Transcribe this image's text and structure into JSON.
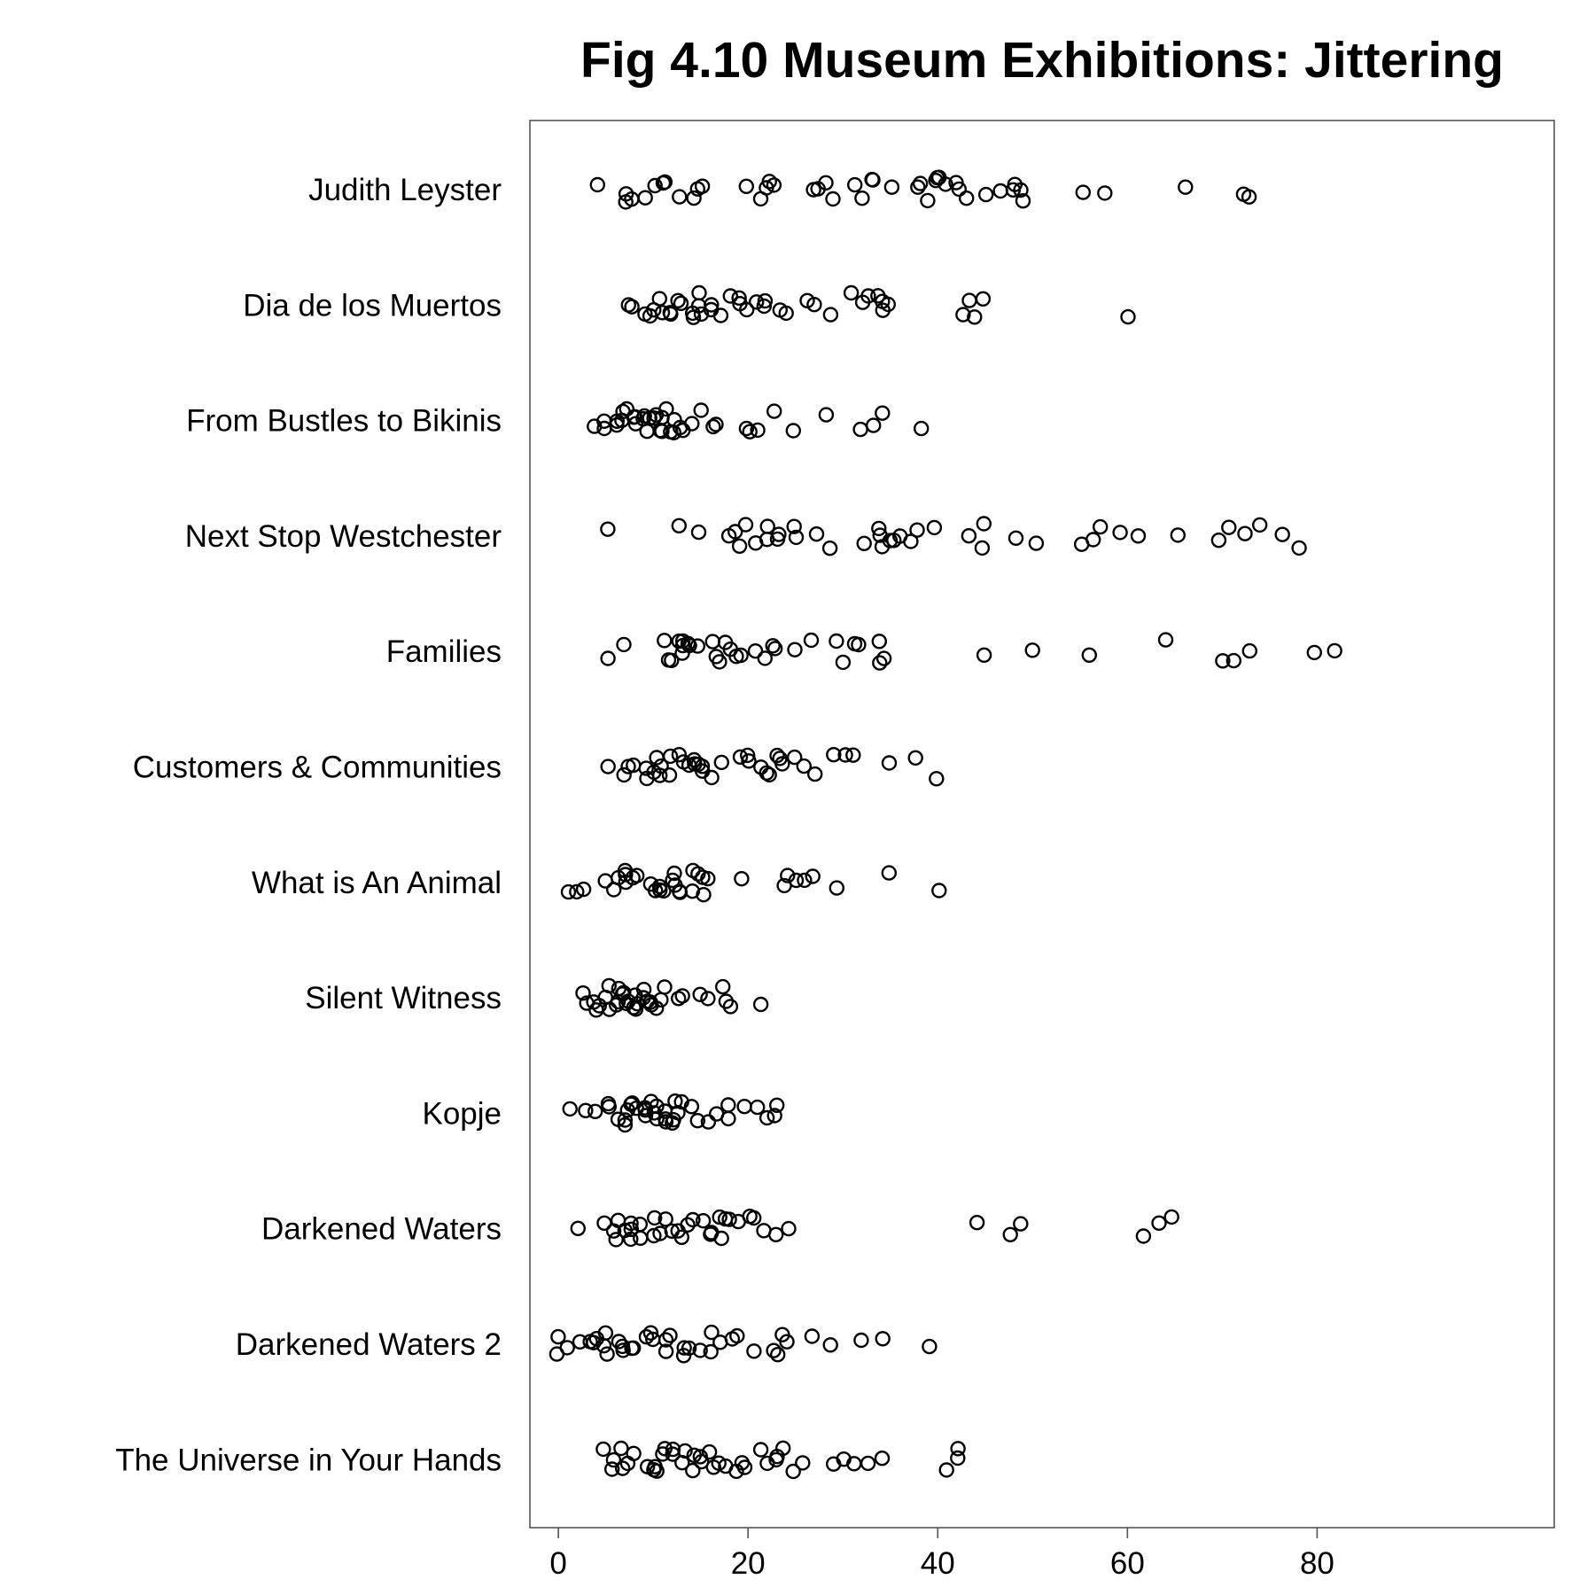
{
  "chart_data": {
    "type": "scatter",
    "title": "Fig 4.10 Museum Exhibitions: Jittering",
    "xlabel": "",
    "ylabel": "",
    "xlim": [
      -3,
      105
    ],
    "xticks": [
      0,
      20,
      40,
      60,
      80
    ],
    "grid": false,
    "legend": "none",
    "point_color": "#000000",
    "categories": [
      "Judith Leyster",
      "Dia de los Muertos",
      "From Bustles to Bikinis",
      "Next Stop Westchester",
      "Families",
      "Customers & Communities",
      "What is An Animal",
      "Silent Witness",
      "Kopje",
      "Darkened Waters",
      "Darkened Waters 2",
      "The Universe in Your Hands"
    ],
    "series": [
      {
        "values": [
          4,
          7,
          7,
          8,
          9,
          10,
          11,
          11,
          13,
          14,
          15,
          15,
          20,
          21,
          22,
          22,
          23,
          27,
          27,
          28,
          29,
          31,
          32,
          33,
          33,
          35,
          38,
          38,
          39,
          40,
          40,
          40,
          41,
          42,
          42,
          43,
          45,
          47,
          48,
          48,
          49,
          49,
          55,
          58,
          66,
          72,
          73
        ]
      },
      {
        "values": [
          7,
          8,
          9,
          10,
          10,
          11,
          11,
          12,
          12,
          13,
          13,
          14,
          14,
          15,
          15,
          15,
          16,
          16,
          17,
          18,
          19,
          19,
          20,
          21,
          22,
          22,
          23,
          24,
          26,
          27,
          29,
          31,
          32,
          33,
          34,
          34,
          34,
          35,
          43,
          43,
          44,
          45,
          60
        ]
      },
      {
        "values": [
          4,
          5,
          5,
          6,
          6,
          7,
          7,
          7,
          8,
          8,
          8,
          9,
          9,
          9,
          10,
          10,
          10,
          11,
          11,
          11,
          11,
          12,
          12,
          12,
          13,
          13,
          14,
          15,
          16,
          17,
          20,
          20,
          21,
          23,
          25,
          28,
          32,
          33,
          34,
          38
        ]
      },
      {
        "values": [
          5,
          13,
          15,
          18,
          19,
          19,
          20,
          21,
          22,
          22,
          23,
          23,
          25,
          25,
          27,
          29,
          32,
          34,
          34,
          34,
          35,
          35,
          36,
          37,
          38,
          40,
          43,
          45,
          45,
          48,
          50,
          55,
          56,
          57,
          59,
          61,
          65,
          70,
          71,
          72,
          74,
          76,
          78
        ]
      },
      {
        "values": [
          5,
          7,
          11,
          12,
          12,
          13,
          13,
          13,
          13,
          14,
          14,
          15,
          16,
          17,
          17,
          18,
          18,
          19,
          19,
          21,
          22,
          23,
          23,
          25,
          27,
          29,
          30,
          31,
          32,
          34,
          34,
          34,
          45,
          50,
          56,
          64,
          70,
          71,
          73,
          80,
          82
        ]
      },
      {
        "values": [
          5,
          7,
          7,
          8,
          9,
          9,
          10,
          10,
          11,
          11,
          12,
          12,
          13,
          13,
          14,
          14,
          14,
          15,
          15,
          15,
          16,
          17,
          19,
          20,
          20,
          21,
          22,
          22,
          23,
          23,
          24,
          25,
          26,
          27,
          29,
          30,
          31,
          35,
          38,
          40
        ]
      },
      {
        "values": [
          1,
          2,
          3,
          5,
          6,
          6,
          7,
          7,
          7,
          8,
          8,
          10,
          10,
          11,
          11,
          11,
          12,
          12,
          12,
          13,
          13,
          14,
          14,
          15,
          15,
          15,
          16,
          19,
          24,
          24,
          25,
          26,
          27,
          29,
          35,
          40
        ]
      },
      {
        "values": [
          3,
          3,
          4,
          4,
          4,
          5,
          5,
          5,
          6,
          6,
          6,
          7,
          7,
          7,
          7,
          8,
          8,
          8,
          8,
          9,
          9,
          9,
          10,
          10,
          10,
          11,
          11,
          13,
          13,
          15,
          16,
          17,
          18,
          18,
          21
        ]
      },
      {
        "values": [
          1,
          3,
          4,
          5,
          5,
          6,
          7,
          7,
          7,
          8,
          8,
          8,
          9,
          9,
          9,
          10,
          10,
          10,
          10,
          11,
          11,
          11,
          12,
          12,
          12,
          13,
          13,
          14,
          15,
          16,
          17,
          18,
          18,
          20,
          21,
          22,
          23,
          23
        ]
      },
      {
        "values": [
          2,
          5,
          6,
          6,
          6,
          7,
          8,
          8,
          8,
          9,
          9,
          10,
          10,
          11,
          11,
          12,
          13,
          13,
          14,
          14,
          15,
          16,
          16,
          17,
          17,
          18,
          18,
          19,
          20,
          21,
          22,
          23,
          24,
          44,
          48,
          49,
          62,
          63,
          65
        ]
      },
      {
        "values": [
          0,
          0,
          1,
          2,
          3,
          4,
          4,
          5,
          5,
          5,
          6,
          7,
          7,
          8,
          8,
          9,
          10,
          10,
          11,
          11,
          12,
          13,
          13,
          14,
          15,
          16,
          16,
          17,
          18,
          19,
          21,
          23,
          23,
          24,
          24,
          27,
          29,
          32,
          34,
          39
        ]
      },
      {
        "values": [
          5,
          6,
          6,
          7,
          7,
          7,
          8,
          9,
          10,
          10,
          10,
          11,
          11,
          12,
          12,
          13,
          13,
          14,
          14,
          15,
          15,
          16,
          16,
          17,
          18,
          19,
          19,
          20,
          21,
          22,
          23,
          23,
          24,
          25,
          26,
          29,
          30,
          31,
          33,
          34,
          41,
          42,
          42
        ]
      }
    ]
  }
}
